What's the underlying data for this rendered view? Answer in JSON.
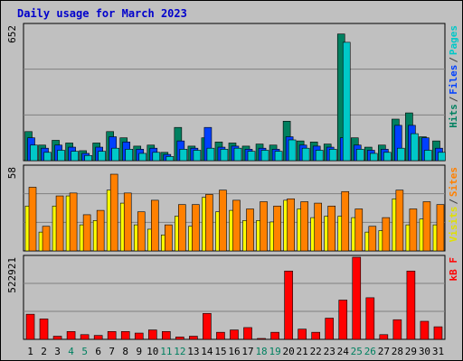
{
  "title": "Daily usage for March 2023",
  "chart_data": [
    {
      "type": "bar",
      "panel": "top",
      "ymax_label": "652",
      "ylim": [
        0,
        652
      ],
      "categories": [
        "1",
        "2",
        "3",
        "4",
        "5",
        "6",
        "7",
        "8",
        "9",
        "10",
        "11",
        "12",
        "13",
        "14",
        "15",
        "16",
        "17",
        "18",
        "19",
        "20",
        "21",
        "22",
        "23",
        "24",
        "25",
        "26",
        "27",
        "28",
        "29",
        "30",
        "31"
      ],
      "series": [
        {
          "name": "Hits",
          "values": [
            140,
            75,
            98,
            85,
            48,
            85,
            140,
            110,
            70,
            75,
            40,
            160,
            70,
            110,
            90,
            85,
            70,
            80,
            75,
            190,
            95,
            90,
            80,
            610,
            110,
            65,
            75,
            200,
            230,
            115,
            95
          ]
        },
        {
          "name": "Files",
          "values": [
            110,
            60,
            75,
            65,
            35,
            65,
            115,
            90,
            55,
            60,
            30,
            95,
            60,
            160,
            65,
            70,
            55,
            60,
            55,
            115,
            75,
            70,
            65,
            110,
            75,
            50,
            55,
            170,
            170,
            110,
            60
          ]
        },
        {
          "name": "Pages",
          "values": [
            75,
            40,
            50,
            45,
            25,
            45,
            60,
            55,
            35,
            40,
            20,
            55,
            50,
            60,
            55,
            60,
            45,
            50,
            45,
            100,
            60,
            50,
            55,
            570,
            55,
            35,
            40,
            60,
            130,
            50,
            40
          ]
        }
      ],
      "legend": [
        {
          "label": "Pages",
          "color": "#00c8c8"
        },
        {
          "label": "/",
          "color": "#404040"
        },
        {
          "label": "Files",
          "color": "#0040ff"
        },
        {
          "label": "/",
          "color": "#404040"
        },
        {
          "label": "Hits",
          "color": "#008060"
        }
      ]
    },
    {
      "type": "bar",
      "panel": "middle",
      "ymax_label": "58",
      "ylim": [
        0,
        58
      ],
      "categories": [
        "1",
        "2",
        "3",
        "4",
        "5",
        "6",
        "7",
        "8",
        "9",
        "10",
        "11",
        "12",
        "13",
        "14",
        "15",
        "16",
        "17",
        "18",
        "19",
        "20",
        "21",
        "22",
        "23",
        "24",
        "25",
        "26",
        "27",
        "28",
        "29",
        "30",
        "31"
      ],
      "series": [
        {
          "name": "Visits",
          "values": [
            31,
            13,
            31,
            38,
            18,
            21,
            42,
            33,
            18,
            15,
            11,
            24,
            17,
            37,
            27,
            28,
            21,
            21,
            20,
            35,
            29,
            23,
            24,
            24,
            23,
            13,
            14,
            36,
            18,
            22,
            18
          ]
        },
        {
          "name": "Sites",
          "values": [
            44,
            17,
            38,
            40,
            25,
            28,
            53,
            40,
            27,
            35,
            18,
            32,
            32,
            39,
            42,
            35,
            29,
            34,
            31,
            36,
            34,
            33,
            31,
            41,
            29,
            17,
            23,
            42,
            29,
            34,
            32
          ]
        }
      ],
      "legend": [
        {
          "label": "Sites",
          "color": "#ff8000"
        },
        {
          "label": "/",
          "color": "#404040"
        },
        {
          "label": "Visits",
          "color": "#e0e000"
        }
      ]
    },
    {
      "type": "bar",
      "panel": "bottom",
      "ymax_label": "522921",
      "ylim": [
        0,
        522921
      ],
      "categories": [
        "1",
        "2",
        "3",
        "4",
        "5",
        "6",
        "7",
        "8",
        "9",
        "10",
        "11",
        "12",
        "13",
        "14",
        "15",
        "16",
        "17",
        "18",
        "19",
        "20",
        "21",
        "22",
        "23",
        "24",
        "25",
        "26",
        "27",
        "28",
        "29",
        "30",
        "31"
      ],
      "series": [
        {
          "name": "kB F",
          "values": [
            160000,
            130000,
            20000,
            50000,
            30000,
            25000,
            50000,
            50000,
            40000,
            60000,
            50000,
            15000,
            20000,
            165000,
            45000,
            60000,
            75000,
            5000,
            45000,
            435000,
            65000,
            45000,
            135000,
            250000,
            522921,
            265000,
            30000,
            125000,
            435000,
            115000,
            80000
          ]
        }
      ],
      "legend": [
        {
          "label": "kB F",
          "color": "#ff0000"
        }
      ]
    }
  ],
  "x_label_colors": [
    "#000000",
    "#000000",
    "#000000",
    "#008060",
    "#008060",
    "#000000",
    "#000000",
    "#000000",
    "#000000",
    "#000000",
    "#008060",
    "#008060",
    "#000000",
    "#000000",
    "#000000",
    "#000000",
    "#000000",
    "#008060",
    "#008060",
    "#000000",
    "#000000",
    "#000000",
    "#000000",
    "#000000",
    "#008060",
    "#008060",
    "#000000",
    "#000000",
    "#000000",
    "#000000",
    "#000000"
  ],
  "colors": {
    "hits": "#008060",
    "files": "#0040ff",
    "pages": "#00c8c8",
    "sites": "#ff8000",
    "visits": "#ffff00",
    "kbytes": "#ff0000",
    "grid": "#808080",
    "panel_bg": "#c0c0c0"
  }
}
